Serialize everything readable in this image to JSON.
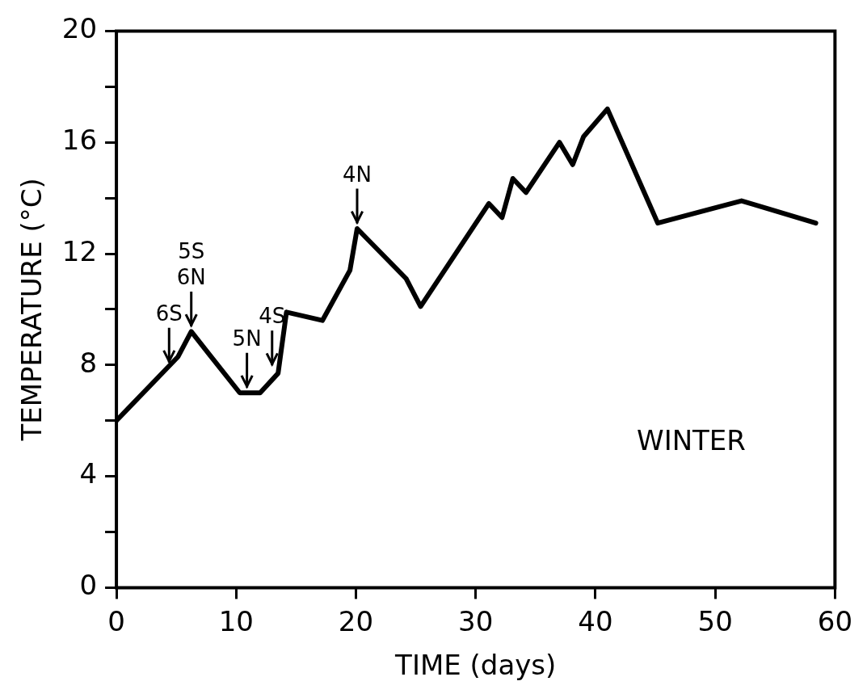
{
  "chart_data": {
    "type": "line",
    "xlabel": "TIME (days)",
    "ylabel": "TEMPERATURE (°C)",
    "x": [
      0,
      5.15,
      6.25,
      10.3,
      12.0,
      13.5,
      14.2,
      17.2,
      19.5,
      20.1,
      24.2,
      25.4,
      31.1,
      32.2,
      33.1,
      34.2,
      37.0,
      38.1,
      39.0,
      41.0,
      45.2,
      52.2,
      58.4
    ],
    "values": [
      6.0,
      8.3,
      9.2,
      7.0,
      7.0,
      7.7,
      9.9,
      9.6,
      11.4,
      12.9,
      11.1,
      10.1,
      13.8,
      13.3,
      14.7,
      14.2,
      16.0,
      15.2,
      16.2,
      17.2,
      13.1,
      13.9,
      13.1
    ],
    "color": "#000000",
    "marker": "none",
    "line_style": "solid",
    "grid": false,
    "legend": false,
    "xlim": [
      0,
      60
    ],
    "xticks": [
      0,
      10,
      20,
      30,
      40,
      50,
      60
    ],
    "ylim": [
      0,
      20
    ],
    "yticks": [
      0,
      {
        "value": 2,
        "label": null
      },
      4,
      {
        "value": 6,
        "label": null
      },
      8,
      {
        "value": 10,
        "label": null
      },
      12,
      {
        "value": 14,
        "label": null
      },
      16,
      {
        "value": 18,
        "label": null
      },
      20
    ],
    "annotations": [
      {
        "text": "6S",
        "x": 4.4,
        "y": 7.9
      },
      {
        "text": "5S\n6N",
        "x": 6.25,
        "y": 9.2
      },
      {
        "text": "5N",
        "x": 10.9,
        "y": 7.0
      },
      {
        "text": "4S",
        "x": 13.0,
        "y": 7.8
      },
      {
        "text": "4N",
        "x": 20.1,
        "y": 12.9
      },
      "WINTER"
    ]
  }
}
